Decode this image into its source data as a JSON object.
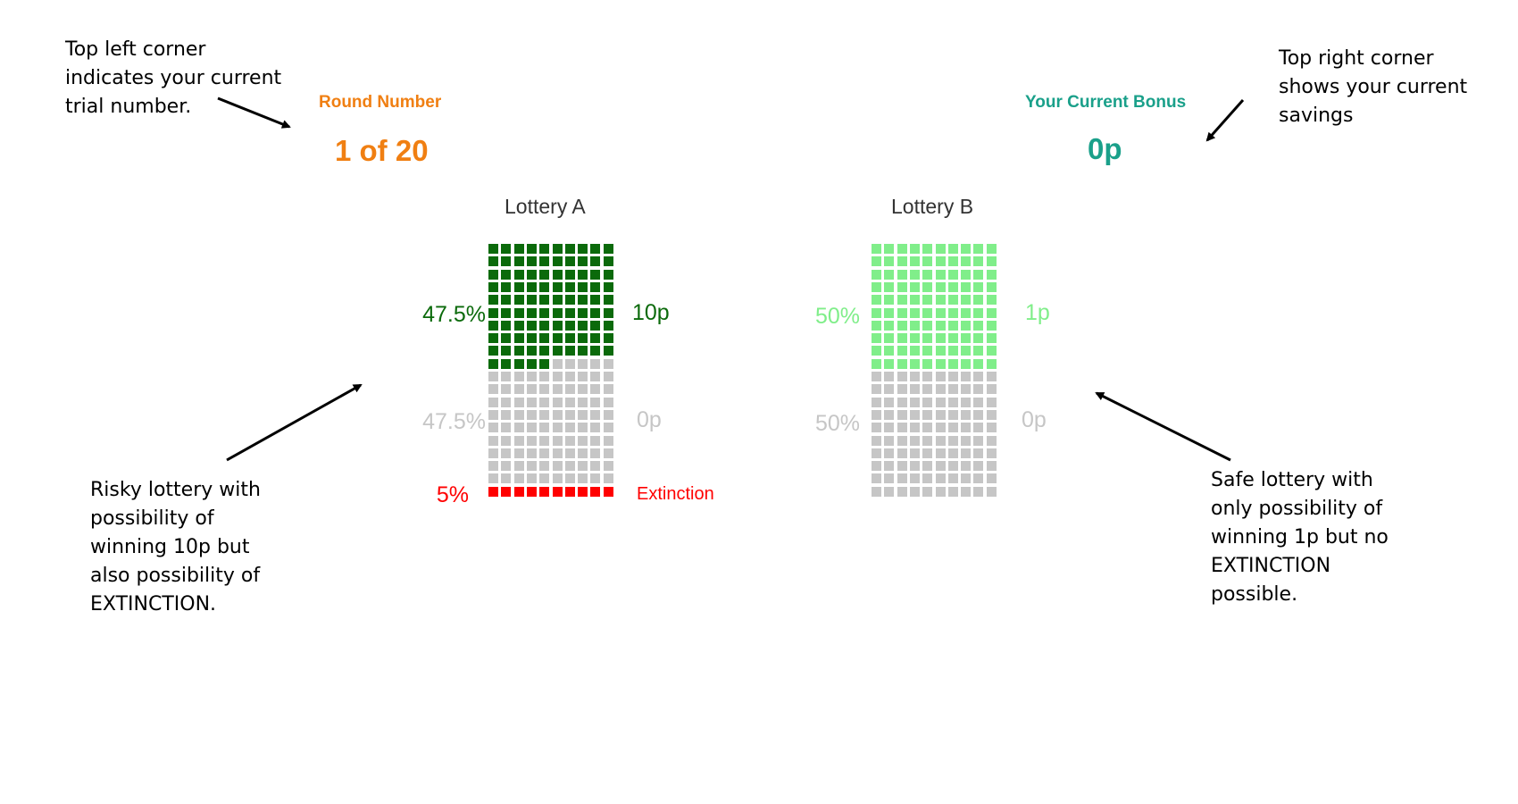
{
  "notes": {
    "top_left": [
      "Top left corner",
      "indicates your current",
      "trial number."
    ],
    "top_right": [
      "Top right corner",
      "shows your current",
      "savings"
    ],
    "bottom_left": [
      "Risky lottery with",
      "possibility of",
      "winning 10p but",
      "also possibility of",
      "EXTINCTION."
    ],
    "bottom_right": [
      "Safe lottery with",
      "only possibility of",
      "winning 1p but no",
      "EXTINCTION",
      "possible."
    ]
  },
  "header": {
    "round_label": "Round Number",
    "round_value": "1 of 20",
    "bonus_label": "Your Current Bonus",
    "bonus_value": "0p"
  },
  "lottery_a": {
    "title": "Lottery A",
    "win_pct": "47.5%",
    "win_payoff": "10p",
    "zero_pct": "47.5%",
    "zero_payoff": "0p",
    "ext_pct": "5%",
    "ext_label": "Extinction",
    "win_cells": 95,
    "zero_cells": 95,
    "ext_cells": 10
  },
  "lottery_b": {
    "title": "Lottery B",
    "win_pct": "50%",
    "win_payoff": "1p",
    "zero_pct": "50%",
    "zero_payoff": "0p",
    "win_cells": 100,
    "zero_cells": 100
  },
  "colors": {
    "orange": "#f07f12",
    "teal": "#1aa08a",
    "dark_green": "#0b6a0b",
    "light_green": "#80ee8a",
    "gray": "#c6c6c6",
    "red": "#ff0000"
  }
}
